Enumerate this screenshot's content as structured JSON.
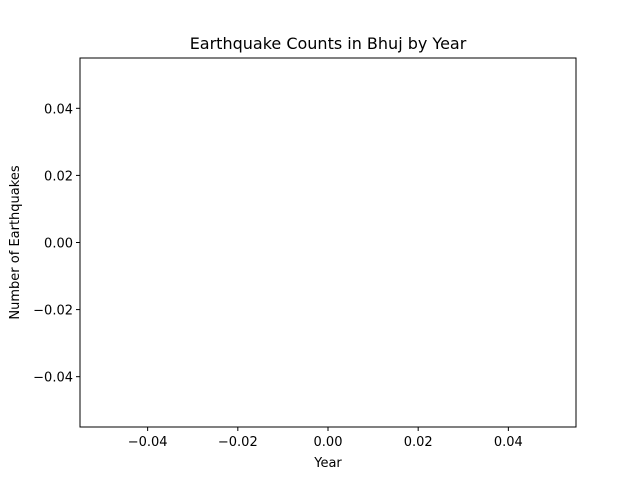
{
  "chart_data": {
    "type": "line",
    "title": "Earthquake Counts in Bhuj by Year",
    "xlabel": "Year",
    "ylabel": "Number of Earthquakes",
    "xlim": [
      -0.055,
      0.055
    ],
    "ylim": [
      -0.055,
      0.055
    ],
    "x_ticks": [
      -0.04,
      -0.02,
      0.0,
      0.02,
      0.04
    ],
    "x_tick_labels": [
      "−0.04",
      "−0.02",
      "0.00",
      "0.02",
      "0.04"
    ],
    "y_ticks": [
      -0.04,
      -0.02,
      0.0,
      0.02,
      0.04
    ],
    "y_tick_labels": [
      "−0.04",
      "−0.02",
      "0.00",
      "0.02",
      "0.04"
    ],
    "grid": false,
    "series": [
      {
        "x": [],
        "y": []
      }
    ],
    "colors": {
      "axis": "#000000",
      "background": "#ffffff"
    }
  }
}
